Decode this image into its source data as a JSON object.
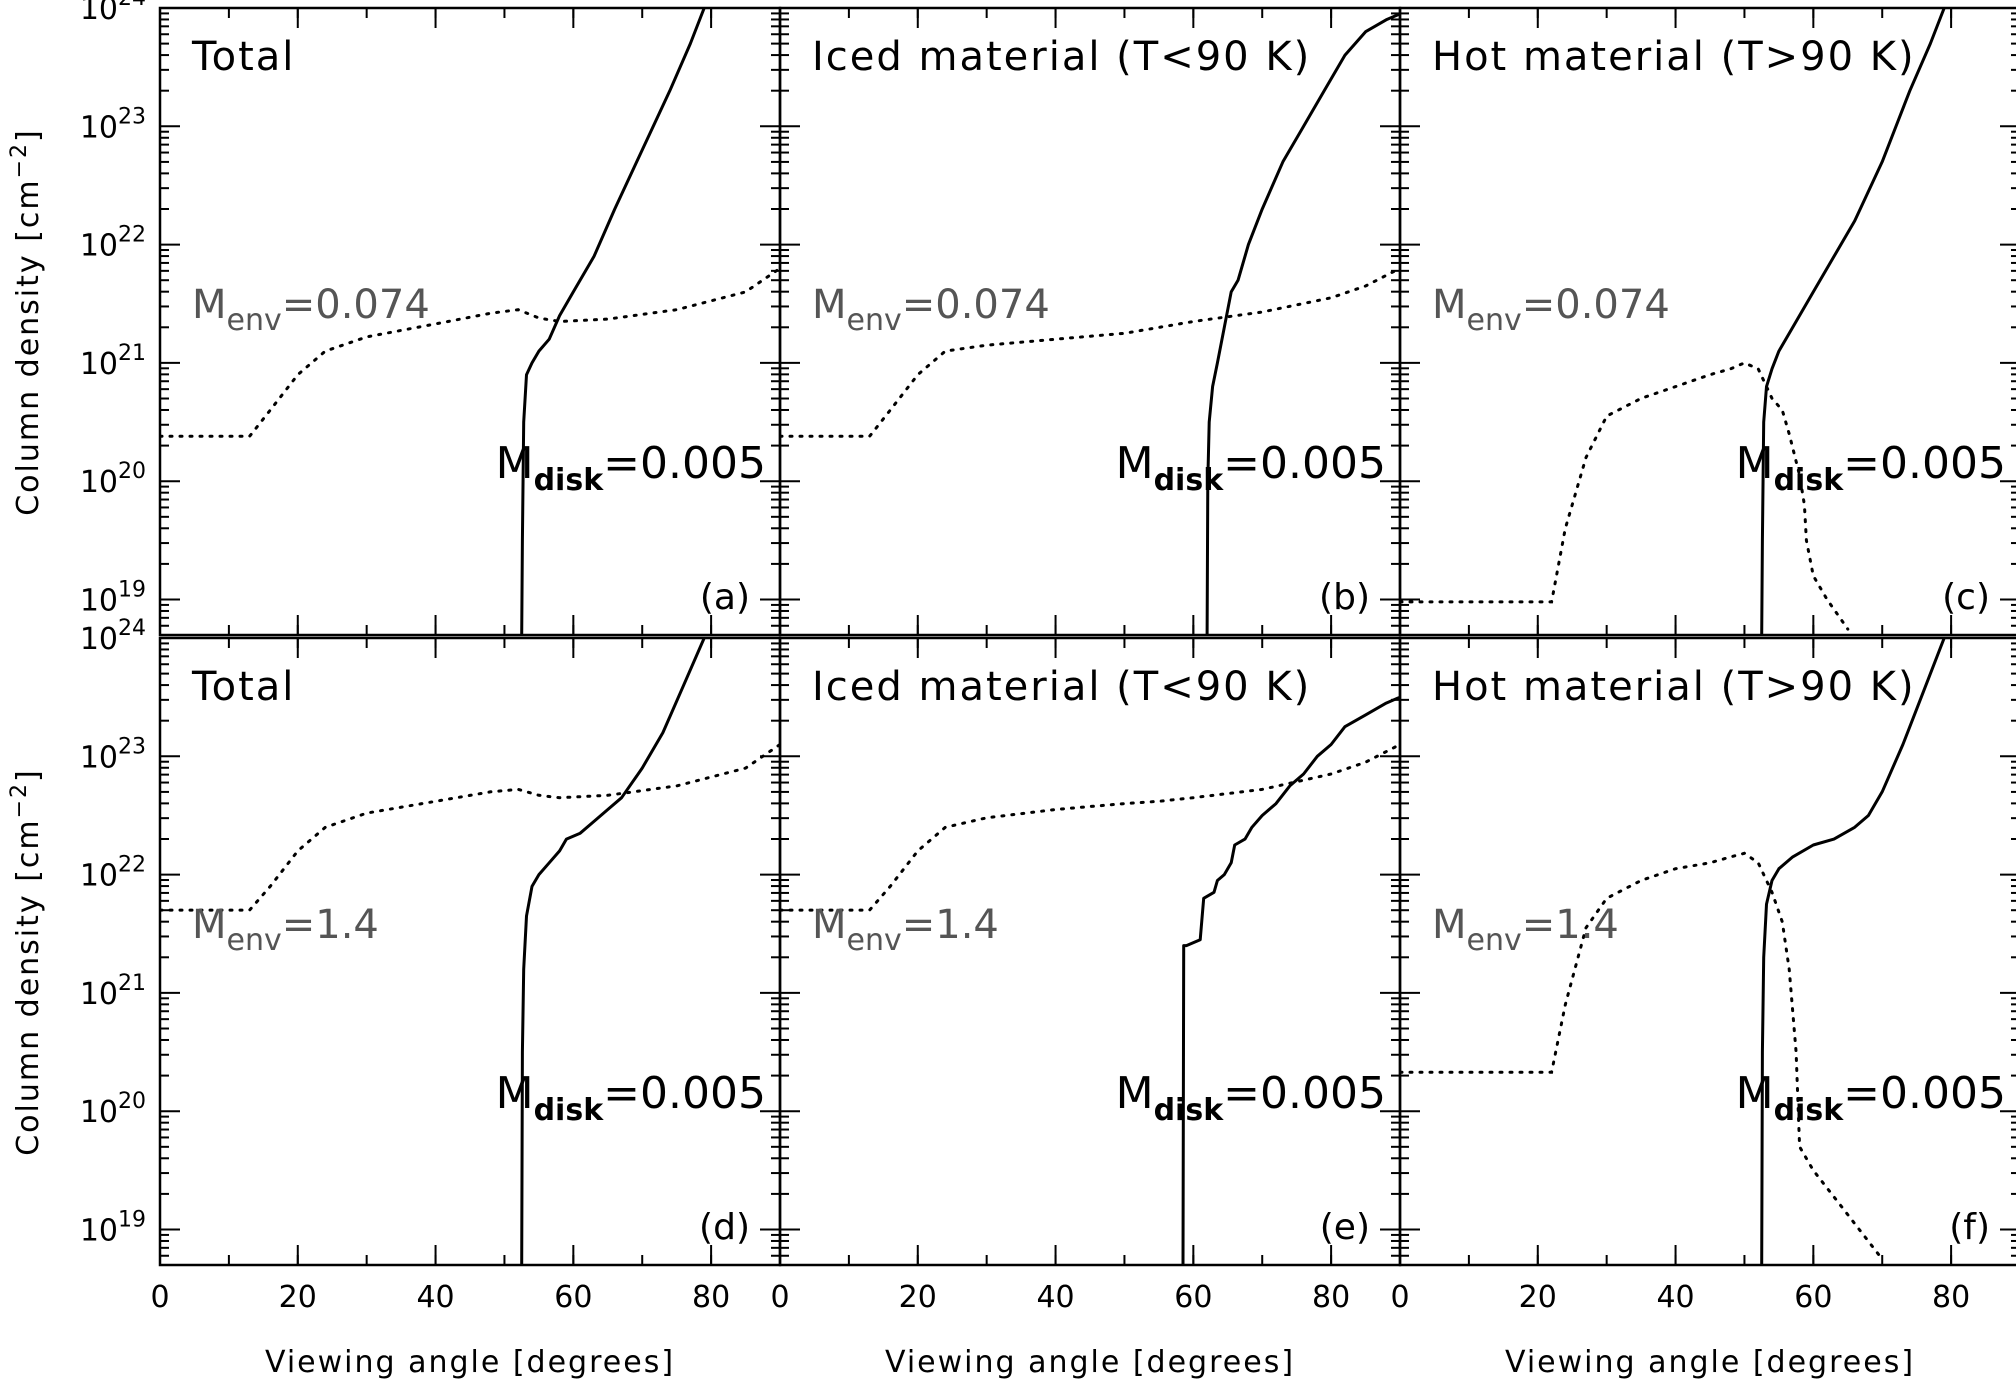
{
  "figure": {
    "y_axis_title": "Column density [cm",
    "y_axis_title_sup": "−2",
    "y_axis_title_end": "]",
    "x_axis_title": "Viewing angle [degrees]",
    "env_symbol": "M",
    "env_sub": "env",
    "disk_symbol": "M",
    "disk_sub": "disk"
  },
  "chart_data": [
    {
      "type": "line",
      "label": "(a)",
      "title": "Total",
      "env_mass": "=0.074",
      "disk_mass": "=0.005",
      "xlim": [
        0,
        90
      ],
      "ylim": [
        18.7,
        24
      ],
      "yscale": "log",
      "xticks": [
        0,
        20,
        40,
        60,
        80
      ],
      "yticks": [
        19,
        20,
        21,
        22,
        23,
        24
      ],
      "series": [
        {
          "style": "dotted",
          "x": [
            0,
            13,
            16,
            20,
            24,
            30,
            40,
            48,
            52,
            55,
            58,
            65,
            75,
            85,
            90
          ],
          "y": [
            20.38,
            20.38,
            20.6,
            20.9,
            21.1,
            21.22,
            21.33,
            21.42,
            21.45,
            21.38,
            21.35,
            21.37,
            21.45,
            21.6,
            21.8
          ]
        },
        {
          "style": "solid",
          "x": [
            52.5,
            52.6,
            52.8,
            53.2,
            54,
            55,
            56.5,
            58,
            60,
            63,
            66,
            70,
            74,
            77,
            79
          ],
          "y": [
            18.7,
            19.5,
            20.5,
            20.9,
            21.0,
            21.1,
            21.2,
            21.4,
            21.6,
            21.9,
            22.3,
            22.8,
            23.3,
            23.7,
            24.0
          ]
        }
      ]
    },
    {
      "type": "line",
      "label": "(b)",
      "title": "Iced material (T<90 K)",
      "env_mass": "=0.074",
      "disk_mass": "=0.005",
      "xlim": [
        0,
        90
      ],
      "ylim": [
        18.7,
        24
      ],
      "yscale": "log",
      "xticks": [
        0,
        20,
        40,
        60,
        80
      ],
      "yticks": [
        19,
        20,
        21,
        22,
        23,
        24
      ],
      "series": [
        {
          "style": "dotted",
          "x": [
            0,
            13,
            16,
            20,
            24,
            30,
            40,
            50,
            55,
            60,
            70,
            80,
            85,
            90
          ],
          "y": [
            20.38,
            20.38,
            20.6,
            20.9,
            21.1,
            21.15,
            21.2,
            21.25,
            21.3,
            21.35,
            21.43,
            21.55,
            21.65,
            21.8
          ]
        },
        {
          "style": "solid",
          "x": [
            62,
            62.1,
            62.3,
            62.8,
            63.5,
            64.5,
            65.5,
            66.5,
            68,
            70,
            73,
            76,
            79,
            82,
            85,
            88,
            90
          ],
          "y": [
            18.7,
            20.0,
            20.5,
            20.8,
            21.0,
            21.3,
            21.6,
            21.7,
            22.0,
            22.3,
            22.7,
            23.0,
            23.3,
            23.6,
            23.8,
            23.9,
            23.95
          ]
        }
      ]
    },
    {
      "type": "line",
      "label": "(c)",
      "title": "Hot material (T>90 K)",
      "env_mass": "=0.074",
      "disk_mass": "=0.005",
      "xlim": [
        0,
        90
      ],
      "ylim": [
        18.7,
        24
      ],
      "yscale": "log",
      "xticks": [
        0,
        20,
        40,
        60,
        80
      ],
      "yticks": [
        19,
        20,
        21,
        22,
        23,
        24
      ],
      "series": [
        {
          "style": "dotted",
          "x": [
            0,
            22,
            24,
            27,
            30,
            35,
            40,
            45,
            48,
            50,
            52,
            54,
            55.5,
            56.5,
            58,
            58.7,
            59,
            60,
            62,
            65
          ],
          "y": [
            18.98,
            18.98,
            19.6,
            20.2,
            20.55,
            20.7,
            20.8,
            20.9,
            20.95,
            21.0,
            20.95,
            20.7,
            20.6,
            20.4,
            20.05,
            19.8,
            19.5,
            19.2,
            19.0,
            18.75
          ]
        },
        {
          "style": "solid",
          "x": [
            52.5,
            52.6,
            52.8,
            53.2,
            54,
            55,
            57,
            60,
            63,
            66,
            70,
            74,
            77,
            79
          ],
          "y": [
            18.7,
            19.5,
            20.5,
            20.8,
            20.95,
            21.1,
            21.3,
            21.6,
            21.9,
            22.2,
            22.7,
            23.3,
            23.7,
            24.0
          ]
        }
      ]
    },
    {
      "type": "line",
      "label": "(d)",
      "title": "Total",
      "env_mass": "=1.4",
      "disk_mass": "=0.005",
      "xlim": [
        0,
        90
      ],
      "ylim": [
        18.7,
        24
      ],
      "yscale": "log",
      "xticks": [
        0,
        20,
        40,
        60,
        80
      ],
      "yticks": [
        19,
        20,
        21,
        22,
        23,
        24
      ],
      "series": [
        {
          "style": "dotted",
          "x": [
            0,
            13,
            16,
            20,
            24,
            30,
            40,
            48,
            52,
            55,
            58,
            65,
            75,
            85,
            90
          ],
          "y": [
            21.7,
            21.7,
            21.9,
            22.2,
            22.4,
            22.52,
            22.62,
            22.7,
            22.72,
            22.67,
            22.65,
            22.67,
            22.75,
            22.9,
            23.1
          ]
        },
        {
          "style": "solid",
          "x": [
            52.5,
            52.6,
            52.8,
            53.2,
            54,
            55,
            56.5,
            58,
            59,
            61,
            63,
            65,
            67,
            70,
            73,
            76,
            79
          ],
          "y": [
            18.7,
            20.5,
            21.2,
            21.65,
            21.9,
            22.0,
            22.1,
            22.2,
            22.3,
            22.35,
            22.45,
            22.55,
            22.65,
            22.9,
            23.2,
            23.6,
            24.0
          ]
        }
      ]
    },
    {
      "type": "line",
      "label": "(e)",
      "title": "Iced material (T<90 K)",
      "env_mass": "=1.4",
      "disk_mass": "=0.005",
      "xlim": [
        0,
        90
      ],
      "ylim": [
        18.7,
        24
      ],
      "yscale": "log",
      "xticks": [
        0,
        20,
        40,
        60,
        80
      ],
      "yticks": [
        19,
        20,
        21,
        22,
        23,
        24
      ],
      "series": [
        {
          "style": "dotted",
          "x": [
            0,
            13,
            16,
            20,
            24,
            30,
            40,
            50,
            55,
            60,
            70,
            80,
            85,
            90
          ],
          "y": [
            21.7,
            21.7,
            21.9,
            22.2,
            22.4,
            22.48,
            22.55,
            22.6,
            22.62,
            22.65,
            22.72,
            22.85,
            22.95,
            23.1
          ]
        },
        {
          "style": "solid",
          "x": [
            58.5,
            58.6,
            59,
            61,
            61.5,
            63,
            63.5,
            64.5,
            65.5,
            66,
            67.5,
            68.5,
            70,
            72,
            74,
            76,
            78,
            80,
            82,
            85,
            88,
            90
          ],
          "y": [
            18.7,
            21.4,
            21.4,
            21.45,
            21.8,
            21.85,
            21.95,
            22.0,
            22.1,
            22.25,
            22.3,
            22.4,
            22.5,
            22.6,
            22.75,
            22.85,
            23.0,
            23.1,
            23.25,
            23.35,
            23.45,
            23.5
          ]
        }
      ]
    },
    {
      "type": "line",
      "label": "(f)",
      "title": "Hot material (T>90 K)",
      "env_mass": "=1.4",
      "disk_mass": "=0.005",
      "xlim": [
        0,
        90
      ],
      "ylim": [
        18.7,
        24
      ],
      "yscale": "log",
      "xticks": [
        0,
        20,
        40,
        60,
        80
      ],
      "yticks": [
        19,
        20,
        21,
        22,
        23,
        24
      ],
      "series": [
        {
          "style": "dotted",
          "x": [
            0,
            22,
            24,
            27,
            30,
            35,
            40,
            45,
            48,
            50,
            52,
            54,
            55.5,
            56.5,
            57.5,
            58,
            60,
            64,
            68,
            70
          ],
          "y": [
            20.33,
            20.33,
            20.9,
            21.55,
            21.8,
            21.95,
            22.05,
            22.1,
            22.15,
            22.18,
            22.1,
            21.85,
            21.6,
            21.2,
            20.5,
            19.7,
            19.5,
            19.2,
            18.9,
            18.75
          ]
        },
        {
          "style": "solid",
          "x": [
            52.5,
            52.6,
            52.8,
            53.2,
            54,
            55,
            57,
            60,
            63,
            66,
            68,
            70,
            73,
            76,
            79
          ],
          "y": [
            18.7,
            20.5,
            21.3,
            21.75,
            21.95,
            22.05,
            22.15,
            22.25,
            22.3,
            22.4,
            22.5,
            22.7,
            23.1,
            23.55,
            24.0
          ]
        }
      ]
    }
  ]
}
